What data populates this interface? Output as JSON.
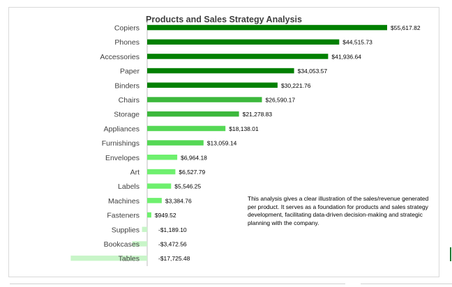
{
  "chart_data": {
    "type": "bar",
    "orientation": "horizontal",
    "title": "Products and Sales Strategy Analysis",
    "xlabel": "",
    "ylabel": "",
    "grid": false,
    "legend": "none",
    "categories": [
      "Copiers",
      "Phones",
      "Accessories",
      "Paper",
      "Binders",
      "Chairs",
      "Storage",
      "Appliances",
      "Furnishings",
      "Envelopes",
      "Art",
      "Labels",
      "Machines",
      "Fasteners",
      "Supplies",
      "Bookcases",
      "Tables"
    ],
    "values": [
      55617.82,
      44515.73,
      41936.64,
      34053.57,
      30221.76,
      26590.17,
      21278.83,
      18138.01,
      13059.14,
      6964.18,
      6527.79,
      5546.25,
      3384.76,
      949.52,
      -1189.1,
      -3472.56,
      -17725.48
    ],
    "labels": [
      "$55,617.82",
      "$44,515.73",
      "$41,936.64",
      "$34,053.57",
      "$30,221.76",
      "$26,590.17",
      "$21,278.83",
      "$18,138.01",
      "$13,059.14",
      "$6,964.18",
      "$6,527.79",
      "$5,546.25",
      "$3,384.76",
      "$949.52",
      "-$1,189.10",
      "-$3,472.56",
      "-$17,725.48"
    ],
    "colors": [
      "#008000",
      "#008000",
      "#008000",
      "#008000",
      "#008000",
      "#3cb83c",
      "#3cb83c",
      "#55d855",
      "#55d855",
      "#6ef06e",
      "#6ef06e",
      "#6ef06e",
      "#6ef06e",
      "#6ef06e",
      "#c8f5c8",
      "#c8f5c8",
      "#c8f5c8"
    ],
    "axis_color": "#bfbfbf"
  },
  "note": "This analysis gives a clear illustration of the sales/revenue generated per product.  It serves as a foundation for products and sales strategy development, facilitating data-driven decision-making and strategic planning with the company."
}
